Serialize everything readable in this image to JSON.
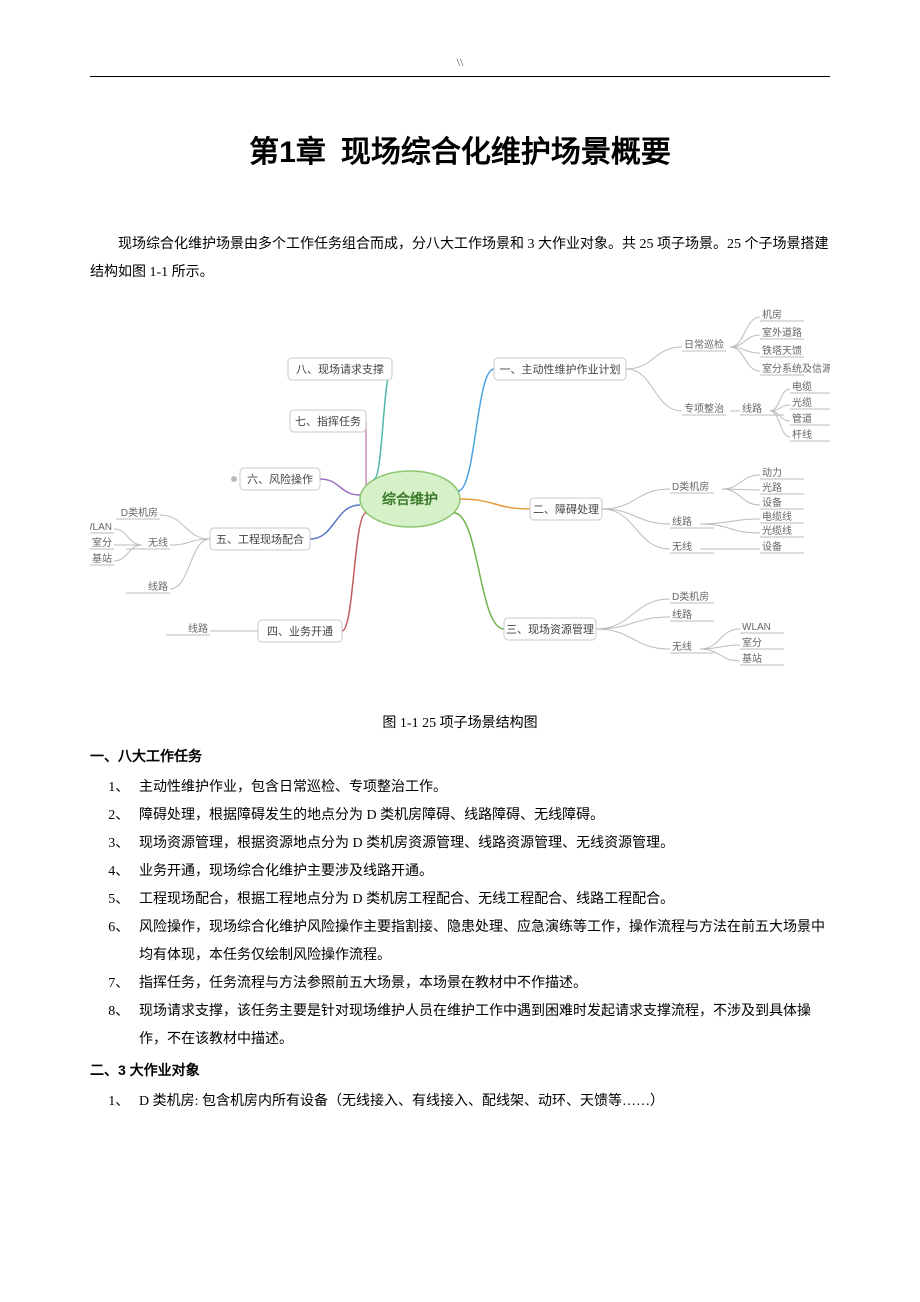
{
  "header": {
    "mark": "\\\\"
  },
  "chapter": {
    "number": "第1章",
    "title": "现场综合化维护场景概要"
  },
  "intro": "现场综合化维护场景由多个工作任务组合而成，分八大工作场景和 3 大作业对象。共 25 项子场景。25 个子场景搭建结构如图 1-1 所示。",
  "diagram": {
    "caption": "图 1-1  25 项子场景结构图",
    "center": "综合维护",
    "colors": {
      "center_fill": "#d6f0c8",
      "center_stroke": "#8cc770",
      "box_fill": "#ffffff",
      "box_stroke": "#c8c8c8",
      "branch_colors": [
        "#4ca3e0",
        "#e69b3a",
        "#6fb34a",
        "#c25e5e",
        "#5a78c2",
        "#9a6fc2",
        "#d08fbf",
        "#4fb8a8"
      ]
    },
    "branches": [
      {
        "label": "一、主动性维护作业计划",
        "side": "right",
        "children": [
          {
            "label": "日常巡检",
            "leaves": [
              "机房",
              "室外道路",
              "铁塔天馈",
              "室分系统及信源"
            ]
          },
          {
            "label": "专项整治",
            "children": [
              {
                "label": "线路",
                "leaves": [
                  "电缆",
                  "光缆",
                  "管道",
                  "杆线"
                ]
              }
            ]
          }
        ]
      },
      {
        "label": "二、障碍处理",
        "side": "right",
        "children": [
          {
            "label": "D类机房",
            "leaves": [
              "动力",
              "光路",
              "设备"
            ]
          },
          {
            "label": "线路",
            "leaves": [
              "电缆线",
              "光缆线"
            ]
          },
          {
            "label": "无线",
            "leaves": [
              "设备"
            ]
          }
        ]
      },
      {
        "label": "三、现场资源管理",
        "side": "right",
        "children": [
          {
            "label": "D类机房",
            "leaves": []
          },
          {
            "label": "线路",
            "leaves": []
          },
          {
            "label": "无线",
            "leaves": [
              "WLAN",
              "室分",
              "基站"
            ]
          }
        ]
      },
      {
        "label": "四、业务开通",
        "side": "left",
        "children": [
          {
            "label": "线路",
            "leaves": []
          }
        ]
      },
      {
        "label": "五、工程现场配合",
        "side": "left",
        "children": [
          {
            "label": "D类机房",
            "leaves": []
          },
          {
            "label": "无线",
            "leaves": [
              "WLAN",
              "室分",
              "基站"
            ]
          },
          {
            "label": "线路",
            "leaves": []
          }
        ]
      },
      {
        "label": "六、风险操作",
        "side": "left",
        "children": []
      },
      {
        "label": "七、指挥任务",
        "side": "left",
        "children": []
      },
      {
        "label": "八、现场请求支撑",
        "side": "left",
        "children": []
      }
    ]
  },
  "section1": {
    "heading": "一、八大工作任务",
    "items": [
      "主动性维护作业，包含日常巡检、专项整治工作。",
      "障碍处理，根据障碍发生的地点分为 D 类机房障碍、线路障碍、无线障碍。",
      "现场资源管理，根据资源地点分为 D 类机房资源管理、线路资源管理、无线资源管理。",
      "业务开通，现场综合化维护主要涉及线路开通。",
      "工程现场配合，根据工程地点分为 D 类机房工程配合、无线工程配合、线路工程配合。",
      "风险操作，现场综合化维护风险操作主要指割接、隐患处理、应急演练等工作，操作流程与方法在前五大场景中均有体现，本任务仅绘制风险操作流程。",
      "指挥任务，任务流程与方法参照前五大场景，本场景在教材中不作描述。",
      "现场请求支撑，该任务主要是针对现场维护人员在维护工作中遇到困难时发起请求支撑流程，不涉及到具体操作，不在该教材中描述。"
    ]
  },
  "section2": {
    "heading": "二、3 大作业对象",
    "items": [
      "D 类机房: 包含机房内所有设备（无线接入、有线接入、配线架、动环、天馈等……）"
    ]
  }
}
